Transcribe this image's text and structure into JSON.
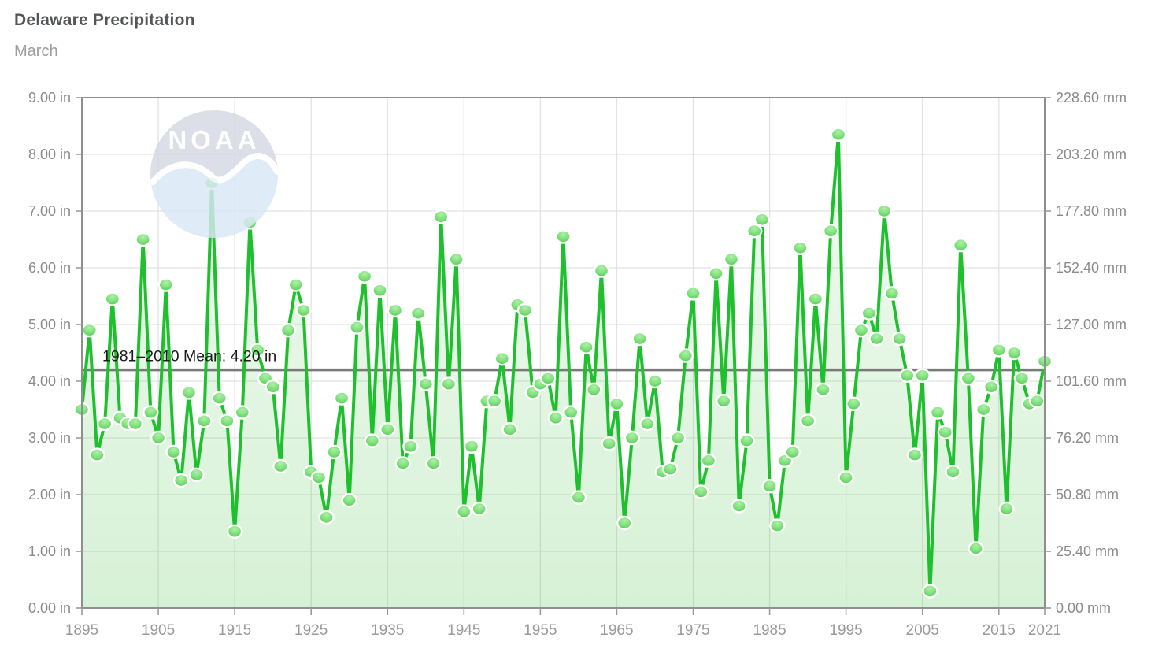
{
  "header": {
    "title": "Delaware Precipitation",
    "subtitle": "March"
  },
  "chart_data": {
    "type": "line",
    "title": "Delaware Precipitation",
    "subtitle": "March",
    "series_name": "March precipitation (in)",
    "x_start_year": 1895,
    "x_end_year": 2021,
    "x": [
      1895,
      1896,
      1897,
      1898,
      1899,
      1900,
      1901,
      1902,
      1903,
      1904,
      1905,
      1906,
      1907,
      1908,
      1909,
      1910,
      1911,
      1912,
      1913,
      1914,
      1915,
      1916,
      1917,
      1918,
      1919,
      1920,
      1921,
      1922,
      1923,
      1924,
      1925,
      1926,
      1927,
      1928,
      1929,
      1930,
      1931,
      1932,
      1933,
      1934,
      1935,
      1936,
      1937,
      1938,
      1939,
      1940,
      1941,
      1942,
      1943,
      1944,
      1945,
      1946,
      1947,
      1948,
      1949,
      1950,
      1951,
      1952,
      1953,
      1954,
      1955,
      1956,
      1957,
      1958,
      1959,
      1960,
      1961,
      1962,
      1963,
      1964,
      1965,
      1966,
      1967,
      1968,
      1969,
      1970,
      1971,
      1972,
      1973,
      1974,
      1975,
      1976,
      1977,
      1978,
      1979,
      1980,
      1981,
      1982,
      1983,
      1984,
      1985,
      1986,
      1987,
      1988,
      1989,
      1990,
      1991,
      1992,
      1993,
      1994,
      1995,
      1996,
      1997,
      1998,
      1999,
      2000,
      2001,
      2002,
      2003,
      2004,
      2005,
      2006,
      2007,
      2008,
      2009,
      2010,
      2011,
      2012,
      2013,
      2014,
      2015,
      2016,
      2017,
      2018,
      2019,
      2020,
      2021
    ],
    "values": [
      3.5,
      4.9,
      2.7,
      3.25,
      5.45,
      3.35,
      3.25,
      3.25,
      6.5,
      3.45,
      3.0,
      5.7,
      2.75,
      2.25,
      3.8,
      2.35,
      3.3,
      7.5,
      3.7,
      3.3,
      1.35,
      3.45,
      6.8,
      4.55,
      4.05,
      3.9,
      2.5,
      4.9,
      5.7,
      5.25,
      2.4,
      2.3,
      1.6,
      2.75,
      3.7,
      1.9,
      4.95,
      5.85,
      2.95,
      5.6,
      3.15,
      5.25,
      2.55,
      2.85,
      5.2,
      3.95,
      2.55,
      6.9,
      3.95,
      6.15,
      1.7,
      2.85,
      1.75,
      3.65,
      3.65,
      4.4,
      3.15,
      5.35,
      5.25,
      3.8,
      3.95,
      4.05,
      3.35,
      6.55,
      3.45,
      1.95,
      4.6,
      3.85,
      5.95,
      2.9,
      3.6,
      1.5,
      3.0,
      4.75,
      3.25,
      4.0,
      2.4,
      2.45,
      3.0,
      4.45,
      5.55,
      2.05,
      2.6,
      5.9,
      3.65,
      6.15,
      1.8,
      2.95,
      6.65,
      6.85,
      2.15,
      1.45,
      2.6,
      2.75,
      6.35,
      3.3,
      5.45,
      3.85,
      6.65,
      8.35,
      2.3,
      3.6,
      4.9,
      5.2,
      4.75,
      7.0,
      5.55,
      4.75,
      4.1,
      2.7,
      4.1,
      0.3,
      3.45,
      3.1,
      2.4,
      6.4,
      4.05,
      1.05,
      3.5,
      3.9,
      4.55,
      1.75,
      4.5,
      4.05,
      3.6,
      3.65,
      4.35
    ],
    "ylabel_left_unit": "in",
    "ylabel_right_unit": "mm",
    "ylim": [
      0,
      9
    ],
    "grid": true,
    "legend": "none",
    "left_axis_labels": [
      "9.00 in",
      "8.00 in",
      "7.00 in",
      "6.00 in",
      "5.00 in",
      "4.00 in",
      "3.00 in",
      "2.00 in",
      "1.00 in",
      "0.00 in"
    ],
    "right_axis_labels": [
      "228.60 mm",
      "203.20 mm",
      "177.80 mm",
      "152.40 mm",
      "127.00 mm",
      "101.60 mm",
      "76.20 mm",
      "50.80 mm",
      "25.40 mm",
      "0.00 mm"
    ],
    "x_tick_labels": [
      "1895",
      "1905",
      "1915",
      "1925",
      "1935",
      "1945",
      "1955",
      "1965",
      "1975",
      "1985",
      "1995",
      "2005",
      "2015",
      "2021"
    ],
    "mean_line": {
      "value": 4.2,
      "label": "1981–2010 Mean: 4.20 in"
    },
    "watermark_text": "NOAA"
  },
  "colors": {
    "line_green": "#1ec12d",
    "marker_light": "#aef0a8",
    "marker_mid": "#7fe07c",
    "marker_dark": "#45c447",
    "marker_stroke": "#ffffff",
    "area_green": "#3cbe3c",
    "mean_line_gray": "#7a7a7a",
    "mean_label_color": "#1a1a1a",
    "grid_gray": "#e2e2e2",
    "frame_gray": "#8f8f8f",
    "tick_gray": "#9b9b9b",
    "axis_label_gray": "#8b8b8b",
    "x_label_gray": "#9a9a9a",
    "title_color": "#55565a",
    "subtitle_color": "#9c9c9c",
    "logo_gray": "#d5d7e3",
    "logo_blue": "#d9e7f6",
    "logo_white": "#ffffff"
  }
}
